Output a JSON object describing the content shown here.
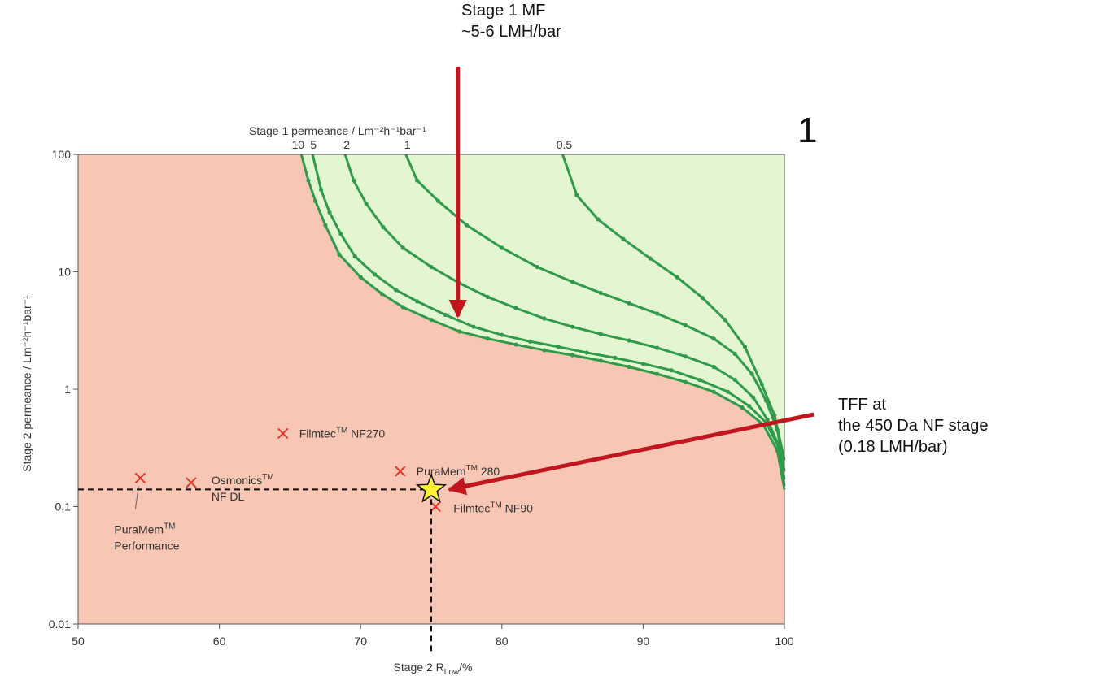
{
  "chart_data": {
    "type": "line",
    "xlabel": "Stage 2 R",
    "xlabel_sub": "Low",
    "xlabel_unit": "/%",
    "ylabel": "Stage 2 permeance / Lm⁻²h⁻¹bar⁻¹",
    "top_axis_title": "Stage 1 permeance / Lm⁻²h⁻¹bar⁻¹",
    "top_tick_labels": [
      "10",
      "5",
      "2",
      "1",
      "0.5"
    ],
    "xlim": [
      50,
      100
    ],
    "ylim": [
      0.01,
      100
    ],
    "y_scale": "log",
    "x_ticks": [
      "50",
      "60",
      "70",
      "80",
      "90",
      "100"
    ],
    "y_ticks": [
      "0.01",
      "0.1",
      "1",
      "10",
      "100"
    ],
    "region_colors": {
      "feasible": "#e4f5d2",
      "infeasible": "#f8c6b4"
    },
    "series_color": "#2f9a4a",
    "marker_color": "#e03a2a",
    "series": [
      {
        "name": "10",
        "points": [
          [
            65.8,
            100
          ],
          [
            66.3,
            60
          ],
          [
            66.8,
            40
          ],
          [
            67.5,
            25
          ],
          [
            68.5,
            14
          ],
          [
            70,
            9
          ],
          [
            71.5,
            6.5
          ],
          [
            73,
            5
          ],
          [
            75,
            3.9
          ],
          [
            77,
            3.1
          ],
          [
            79,
            2.7
          ],
          [
            81,
            2.4
          ],
          [
            83,
            2.15
          ],
          [
            85,
            1.95
          ],
          [
            87,
            1.75
          ],
          [
            89,
            1.55
          ],
          [
            91,
            1.35
          ],
          [
            93,
            1.15
          ],
          [
            95,
            0.95
          ],
          [
            97,
            0.7
          ],
          [
            98.5,
            0.5
          ],
          [
            99.5,
            0.3
          ],
          [
            100,
            0.14
          ]
        ]
      },
      {
        "name": "5",
        "points": [
          [
            66.6,
            100
          ],
          [
            67.2,
            50
          ],
          [
            67.8,
            32
          ],
          [
            68.6,
            21
          ],
          [
            69.6,
            13.5
          ],
          [
            71,
            9.5
          ],
          [
            72.5,
            7
          ],
          [
            74,
            5.6
          ],
          [
            76,
            4.3
          ],
          [
            78,
            3.4
          ],
          [
            80,
            2.9
          ],
          [
            82,
            2.55
          ],
          [
            84,
            2.3
          ],
          [
            86,
            2.05
          ],
          [
            88,
            1.85
          ],
          [
            90,
            1.65
          ],
          [
            92,
            1.45
          ],
          [
            94,
            1.2
          ],
          [
            96,
            0.95
          ],
          [
            97.5,
            0.72
          ],
          [
            98.7,
            0.52
          ],
          [
            99.6,
            0.32
          ],
          [
            100,
            0.15
          ]
        ]
      },
      {
        "name": "2",
        "points": [
          [
            68.9,
            100
          ],
          [
            69.5,
            60
          ],
          [
            70.4,
            38
          ],
          [
            71.6,
            24
          ],
          [
            73,
            16
          ],
          [
            75,
            11
          ],
          [
            77,
            8
          ],
          [
            79,
            6.1
          ],
          [
            81,
            4.9
          ],
          [
            83,
            4
          ],
          [
            85,
            3.4
          ],
          [
            87,
            2.95
          ],
          [
            89,
            2.6
          ],
          [
            91,
            2.25
          ],
          [
            93,
            1.9
          ],
          [
            95,
            1.55
          ],
          [
            96.5,
            1.2
          ],
          [
            97.8,
            0.85
          ],
          [
            98.8,
            0.55
          ],
          [
            99.6,
            0.33
          ],
          [
            100,
            0.17
          ]
        ]
      },
      {
        "name": "1",
        "points": [
          [
            73.2,
            100
          ],
          [
            74,
            60
          ],
          [
            75.5,
            40
          ],
          [
            77.5,
            25
          ],
          [
            80,
            16
          ],
          [
            82.5,
            11
          ],
          [
            85,
            8.2
          ],
          [
            87,
            6.6
          ],
          [
            89,
            5.4
          ],
          [
            91,
            4.4
          ],
          [
            93,
            3.5
          ],
          [
            95,
            2.7
          ],
          [
            96.5,
            2
          ],
          [
            97.7,
            1.35
          ],
          [
            98.7,
            0.8
          ],
          [
            99.5,
            0.45
          ],
          [
            100,
            0.2
          ]
        ]
      },
      {
        "name": "0.5",
        "points": [
          [
            84.3,
            100
          ],
          [
            85.3,
            45
          ],
          [
            86.8,
            28
          ],
          [
            88.6,
            19
          ],
          [
            90.5,
            13
          ],
          [
            92.4,
            9
          ],
          [
            94.2,
            6
          ],
          [
            95.8,
            3.9
          ],
          [
            97.2,
            2.3
          ],
          [
            98.4,
            1.1
          ],
          [
            99.3,
            0.6
          ],
          [
            100,
            0.25
          ]
        ]
      }
    ],
    "membranes": [
      {
        "label": "Filmtec",
        "tm": "TM",
        "suffix": " NF270",
        "x": 64.5,
        "y": 0.42
      },
      {
        "label": "Osmonics",
        "tm": "TM",
        "suffix": "",
        "label2": "NF DL",
        "x": 58,
        "y": 0.16
      },
      {
        "label": "PuraMem",
        "tm": "TM",
        "suffix": " 280",
        "x": 72.8,
        "y": 0.2
      },
      {
        "label": "Filmtec",
        "tm": "TM",
        "suffix": " NF90",
        "x": 75.3,
        "y": 0.1
      },
      {
        "label": "PuraMem",
        "tm": "TM",
        "suffix": "",
        "label2": "Performance",
        "x": 54.4,
        "y": 0.175
      }
    ],
    "highlight_point": {
      "x": 75,
      "y": 0.14,
      "color": "#fff232"
    },
    "stage1_pointer": {
      "x": 77,
      "y": 3.8
    }
  },
  "annotations": {
    "big_number": "1",
    "stage1_title": "Stage 1 MF",
    "stage1_value": "~5-6 LMH/bar",
    "tff_line1": "TFF at",
    "tff_line2": "the 450 Da NF stage",
    "tff_line3": "(0.18 LMH/bar)",
    "arrow_color": "#c0161d"
  }
}
